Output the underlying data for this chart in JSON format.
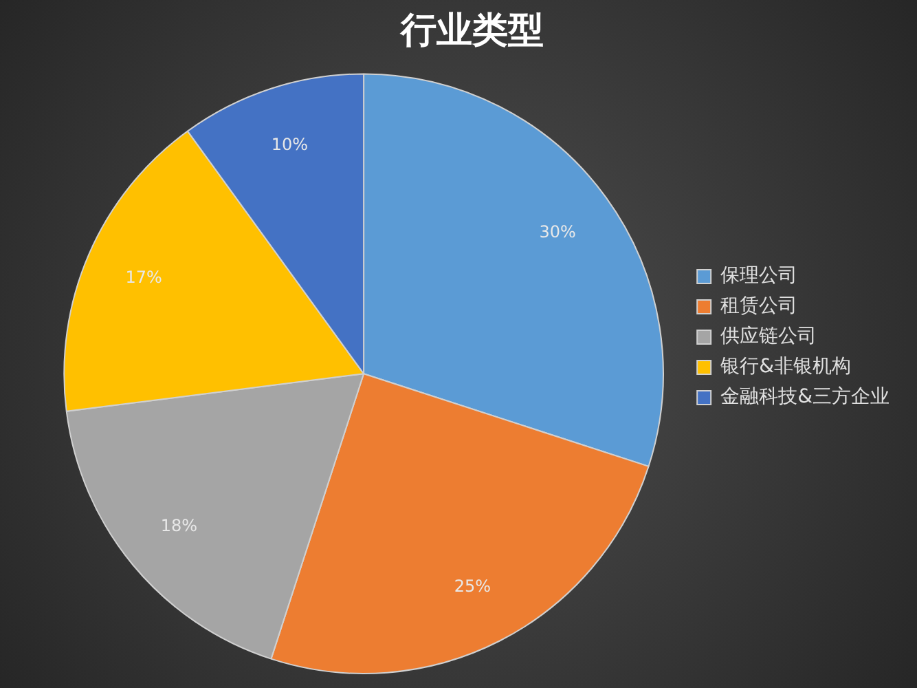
{
  "chart_data": {
    "type": "pie",
    "title": "行业类型",
    "categories": [
      "保理公司",
      "租赁公司",
      "供应链公司",
      "银行&非银机构",
      "金融科技&三方企业"
    ],
    "values": [
      30,
      25,
      18,
      17,
      10
    ],
    "value_labels": [
      "30%",
      "25%",
      "18%",
      "17%",
      "10%"
    ],
    "colors": [
      "#5b9bd5",
      "#ed7d31",
      "#a5a5a5",
      "#ffc000",
      "#4472c4"
    ],
    "legend": "right"
  }
}
